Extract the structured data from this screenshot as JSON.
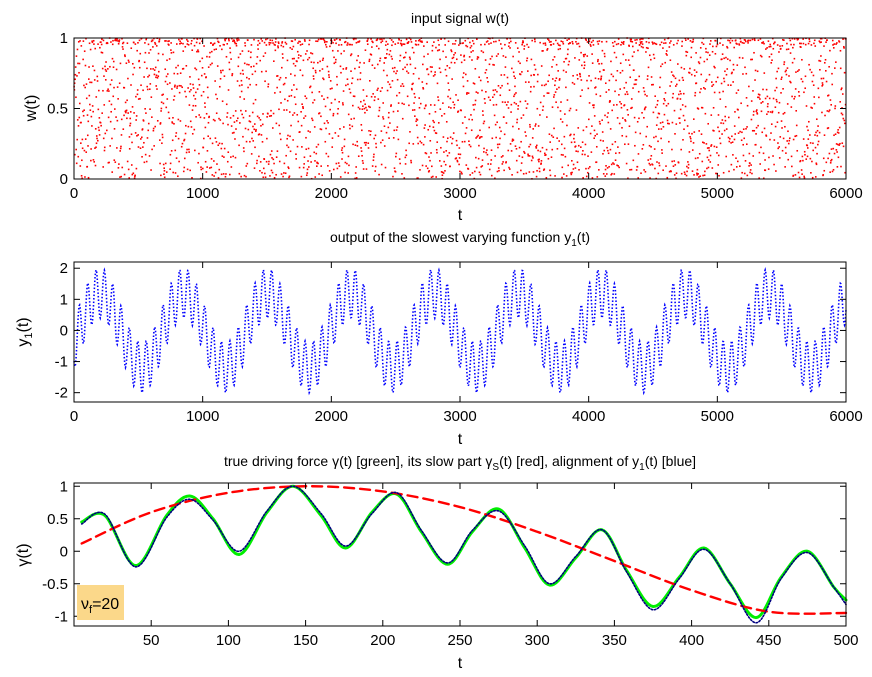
{
  "chart_data": [
    {
      "type": "scatter",
      "title": "input signal w(t)",
      "xlabel": "t",
      "ylabel": "w(t)",
      "xlim": [
        0,
        6000
      ],
      "ylim": [
        0,
        1
      ],
      "xticks": [
        "0",
        "1000",
        "2000",
        "3000",
        "4000",
        "5000",
        "6000"
      ],
      "yticks": [
        "0",
        "0.5",
        "1"
      ],
      "grid": false,
      "series": [
        {
          "color": "#ff0000",
          "style": "dots",
          "description_values": "uniform random values in [0,1], roughly 3000 points over t=0..6000"
        }
      ]
    },
    {
      "type": "line",
      "title_main": "output of the slowest varying function y",
      "title_sub": "1",
      "title_tail": "(t)",
      "xlabel": "t",
      "ylabel_main": "y",
      "ylabel_sub": "1",
      "ylabel_tail": "(t)",
      "xlim": [
        0,
        6000
      ],
      "ylim": [
        -2.3,
        2.2
      ],
      "xticks": [
        "0",
        "1000",
        "2000",
        "3000",
        "4000",
        "5000",
        "6000"
      ],
      "yticks": [
        "-2",
        "-1",
        "0",
        "1",
        "2"
      ],
      "grid": false,
      "series": [
        {
          "color": "#0000ff",
          "style": "dotted",
          "slow_period": 650,
          "slow_amplitude": 1.2,
          "fast_period": 65,
          "fast_amplitude": 0.8
        }
      ]
    },
    {
      "type": "line",
      "title_parts": {
        "a": "true driving force ",
        "b": "γ",
        "c": "(t) [green], its slow part ",
        "d": "γ",
        "e": "S",
        "f": "(t) [red], alignment of y",
        "g": "1",
        "h": "(t) [blue]"
      },
      "xlabel": "t",
      "ylabel": "γ(t)",
      "xlim": [
        0,
        500
      ],
      "ylim": [
        -1.15,
        1.05
      ],
      "xticks": [
        "50",
        "100",
        "150",
        "200",
        "250",
        "300",
        "350",
        "400",
        "450",
        "500"
      ],
      "yticks": [
        "-1",
        "-0.5",
        "0",
        "0.5",
        "1"
      ],
      "grid": false,
      "annotation": {
        "main": "ν",
        "sub": "f",
        "tail": "=20"
      },
      "series": [
        {
          "name": "true driving force",
          "color": "#00ee00",
          "style": "solid",
          "x": [
            5,
            20,
            40,
            60,
            75,
            90,
            107,
            125,
            142,
            160,
            176,
            193,
            209,
            225,
            242,
            258,
            275,
            292,
            308,
            325,
            342,
            358,
            375,
            392,
            408,
            425,
            442,
            458,
            475,
            492,
            500
          ],
          "y": [
            0.45,
            0.55,
            -0.22,
            0.55,
            0.85,
            0.5,
            -0.05,
            0.6,
            1.0,
            0.55,
            0.05,
            0.6,
            0.88,
            0.3,
            -0.2,
            0.3,
            0.65,
            0.05,
            -0.52,
            -0.1,
            0.33,
            -0.3,
            -0.85,
            -0.4,
            0.05,
            -0.5,
            -1.02,
            -0.4,
            0.0,
            -0.55,
            -0.75
          ]
        },
        {
          "name": "slow part",
          "color": "#ff0000",
          "style": "dashed",
          "x": [
            5,
            50,
            100,
            150,
            200,
            250,
            300,
            350,
            400,
            450,
            500
          ],
          "y": [
            0.12,
            0.6,
            0.9,
            1.0,
            0.92,
            0.68,
            0.3,
            -0.15,
            -0.6,
            -0.93,
            -0.95
          ]
        },
        {
          "name": "alignment of y1",
          "color": "#000080",
          "style": "dotted",
          "x": [
            5,
            20,
            40,
            60,
            75,
            90,
            107,
            125,
            142,
            160,
            176,
            193,
            209,
            225,
            242,
            258,
            275,
            292,
            308,
            325,
            342,
            358,
            375,
            392,
            408,
            425,
            442,
            458,
            475,
            492,
            500
          ],
          "y": [
            0.42,
            0.57,
            -0.24,
            0.52,
            0.8,
            0.48,
            0.0,
            0.62,
            1.0,
            0.58,
            0.08,
            0.58,
            0.9,
            0.32,
            -0.18,
            0.32,
            0.62,
            0.08,
            -0.5,
            -0.08,
            0.33,
            -0.32,
            -0.9,
            -0.42,
            0.03,
            -0.5,
            -1.1,
            -0.42,
            -0.02,
            -0.55,
            -0.82
          ]
        }
      ]
    }
  ]
}
